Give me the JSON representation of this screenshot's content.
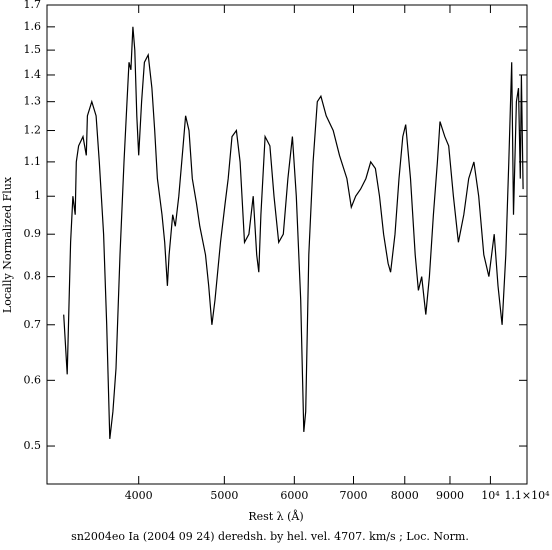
{
  "chart_data": {
    "type": "line",
    "xlabel": "Rest λ (Å)",
    "ylabel": "Locally Normalized Flux",
    "caption": "sn2004eo Ia (2004 09 24) deredsh. by hel. vel.  4707. km/s ;  Loc. Norm.",
    "xscale": "log",
    "yscale": "log",
    "color": "#000000",
    "xlim": [
      3150,
      11000
    ],
    "ylim": [
      0.45,
      1.7
    ],
    "xticks": [
      4000,
      5000,
      6000,
      7000,
      8000,
      9000,
      {
        "value": 10000,
        "label": "10⁴"
      },
      {
        "value": 11000,
        "label": "1.1×10⁴"
      }
    ],
    "yticks": [
      0.5,
      0.6,
      0.7,
      0.8,
      0.9,
      1,
      1.1,
      1.2,
      1.3,
      1.4,
      1.5,
      1.6,
      1.7
    ],
    "x": [
      3290,
      3320,
      3350,
      3370,
      3390,
      3400,
      3420,
      3460,
      3490,
      3500,
      3540,
      3580,
      3610,
      3650,
      3680,
      3710,
      3740,
      3770,
      3810,
      3850,
      3880,
      3900,
      3920,
      3940,
      3960,
      3980,
      4000,
      4030,
      4060,
      4100,
      4140,
      4170,
      4200,
      4250,
      4280,
      4310,
      4330,
      4370,
      4400,
      4440,
      4490,
      4520,
      4560,
      4600,
      4650,
      4690,
      4760,
      4800,
      4840,
      4880,
      4950,
      5010,
      5050,
      5100,
      5160,
      5210,
      5270,
      5330,
      5390,
      5440,
      5470,
      5500,
      5560,
      5630,
      5690,
      5760,
      5830,
      5900,
      5970,
      6030,
      6100,
      6150,
      6180,
      6230,
      6300,
      6370,
      6430,
      6520,
      6640,
      6750,
      6880,
      6960,
      7040,
      7130,
      7230,
      7320,
      7410,
      7490,
      7570,
      7660,
      7710,
      7800,
      7880,
      7960,
      8020,
      8120,
      8220,
      8290,
      8360,
      8450,
      8530,
      8620,
      8710,
      8770,
      8880,
      8970,
      9080,
      9200,
      9330,
      9450,
      9580,
      9700,
      9830,
      9960,
      10100,
      10200,
      10310,
      10410,
      10490,
      10570,
      10620,
      10700,
      10760,
      10810,
      10840,
      10890
    ],
    "values": [
      0.72,
      0.61,
      0.88,
      1.0,
      0.95,
      1.1,
      1.15,
      1.18,
      1.12,
      1.25,
      1.3,
      1.25,
      1.1,
      0.9,
      0.7,
      0.51,
      0.55,
      0.62,
      0.85,
      1.1,
      1.3,
      1.45,
      1.42,
      1.6,
      1.5,
      1.25,
      1.12,
      1.3,
      1.45,
      1.48,
      1.35,
      1.2,
      1.05,
      0.95,
      0.88,
      0.78,
      0.85,
      0.95,
      0.92,
      1.0,
      1.15,
      1.25,
      1.2,
      1.05,
      0.98,
      0.92,
      0.85,
      0.78,
      0.7,
      0.75,
      0.88,
      0.98,
      1.05,
      1.18,
      1.2,
      1.1,
      0.88,
      0.9,
      1.0,
      0.85,
      0.81,
      0.95,
      1.18,
      1.15,
      1.0,
      0.88,
      0.9,
      1.05,
      1.18,
      1.0,
      0.75,
      0.52,
      0.55,
      0.85,
      1.1,
      1.3,
      1.32,
      1.25,
      1.2,
      1.12,
      1.05,
      0.97,
      1.0,
      1.02,
      1.05,
      1.1,
      1.08,
      1.0,
      0.9,
      0.83,
      0.81,
      0.9,
      1.05,
      1.18,
      1.22,
      1.05,
      0.85,
      0.77,
      0.8,
      0.72,
      0.8,
      0.95,
      1.1,
      1.23,
      1.18,
      1.15,
      1.0,
      0.88,
      0.95,
      1.05,
      1.1,
      1.0,
      0.85,
      0.8,
      0.9,
      0.78,
      0.7,
      0.85,
      1.1,
      1.45,
      0.95,
      1.3,
      1.35,
      1.05,
      1.4,
      1.02
    ]
  }
}
